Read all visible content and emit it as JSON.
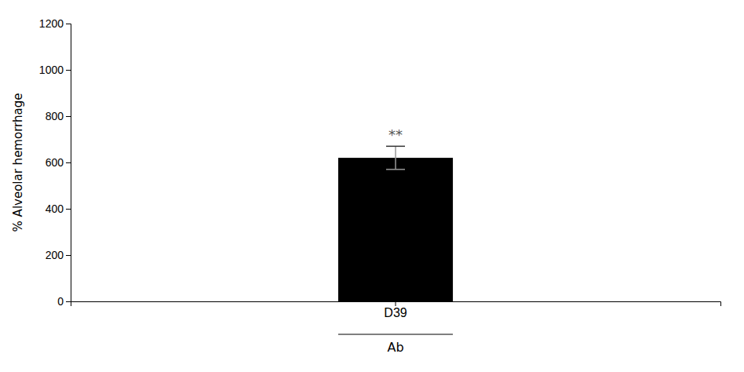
{
  "chart_data": {
    "type": "bar",
    "categories": [
      "D39"
    ],
    "values": [
      620
    ],
    "errors": [
      50
    ],
    "color": "#000000",
    "ylabel": "% Alveolar hemorrhage",
    "xlabel": "Ab",
    "annotations": [
      {
        "text": "**",
        "color": "#555555"
      }
    ],
    "ylim": [
      0,
      1200
    ],
    "yticks": [
      0,
      200,
      400,
      600,
      800,
      1000,
      1200
    ],
    "grid": false
  }
}
